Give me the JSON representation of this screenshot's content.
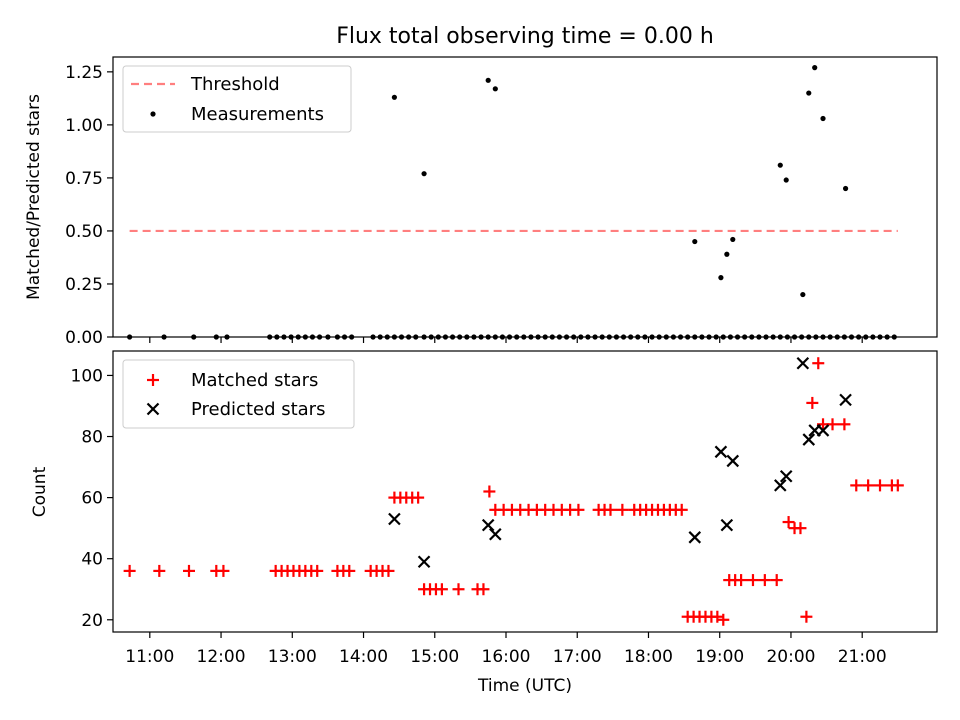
{
  "chart_data": [
    {
      "type": "scatter",
      "title": "Flux total observing time = 0.00 h",
      "xlabel": "",
      "ylabel": "Matched/Predicted stars",
      "xlim": [
        "10:29",
        "22:03"
      ],
      "ylim": [
        0,
        1.32
      ],
      "y_ticks": [
        0.0,
        0.25,
        0.5,
        0.75,
        1.0,
        1.25
      ],
      "y_tick_labels": [
        "0.00",
        "0.25",
        "0.50",
        "0.75",
        "1.00",
        "1.25"
      ],
      "x_tick_labels": [],
      "legend": {
        "placement": "top-left"
      },
      "threshold": {
        "name": "Threshold",
        "value": 0.5,
        "x_range": [
          "10:43",
          "21:30"
        ],
        "color": "#ff7f7f"
      },
      "series": [
        {
          "name": "Measurements",
          "color": "#000000",
          "marker": "dot",
          "x": [
            "10:43",
            "11:12",
            "11:37",
            "11:56",
            "12:05",
            "12:41",
            "12:47",
            "12:53",
            "12:59",
            "13:05",
            "13:11",
            "13:17",
            "13:23",
            "13:30",
            "13:38",
            "13:44",
            "13:50",
            "14:08",
            "14:14",
            "14:20",
            "14:26",
            "14:32",
            "14:38",
            "14:44",
            "14:51",
            "14:57",
            "15:03",
            "15:09",
            "15:15",
            "15:21",
            "15:27",
            "15:33",
            "15:39",
            "15:45",
            "15:51",
            "15:57",
            "16:03",
            "16:09",
            "16:15",
            "16:21",
            "16:27",
            "16:33",
            "16:39",
            "16:45",
            "16:51",
            "16:57",
            "17:03",
            "17:09",
            "17:15",
            "17:21",
            "17:27",
            "17:33",
            "17:39",
            "17:45",
            "17:51",
            "17:57",
            "18:03",
            "18:09",
            "18:15",
            "18:21",
            "18:27",
            "18:33",
            "18:39",
            "18:45",
            "18:51",
            "18:57",
            "19:03",
            "19:09",
            "19:15",
            "19:21",
            "19:27",
            "19:33",
            "19:39",
            "19:45",
            "19:51",
            "19:57",
            "20:03",
            "20:09",
            "20:15",
            "20:21",
            "20:27",
            "20:33",
            "20:39",
            "20:45",
            "20:51",
            "20:57",
            "21:03",
            "21:09",
            "21:15",
            "21:21",
            "21:27",
            "14:26",
            "14:51",
            "15:45",
            "15:51",
            "18:39",
            "19:01",
            "19:06",
            "19:11",
            "19:51",
            "19:56",
            "20:10",
            "20:15",
            "20:20",
            "20:27",
            "20:46"
          ],
          "y": [
            0,
            0,
            0,
            0,
            0,
            0,
            0,
            0,
            0,
            0,
            0,
            0,
            0,
            0,
            0,
            0,
            0,
            0,
            0,
            0,
            0,
            0,
            0,
            0,
            0,
            0,
            0,
            0,
            0,
            0,
            0,
            0,
            0,
            0,
            0,
            0,
            0,
            0,
            0,
            0,
            0,
            0,
            0,
            0,
            0,
            0,
            0,
            0,
            0,
            0,
            0,
            0,
            0,
            0,
            0,
            0,
            0,
            0,
            0,
            0,
            0,
            0,
            0,
            0,
            0,
            0,
            0,
            0,
            0,
            0,
            0,
            0,
            0,
            0,
            0,
            0,
            0,
            0,
            0,
            0,
            0,
            0,
            0,
            0,
            0,
            0,
            0,
            0,
            0,
            0,
            0,
            1.13,
            0.77,
            1.21,
            1.17,
            0.45,
            0.28,
            0.39,
            0.46,
            0.81,
            0.74,
            0.2,
            1.15,
            1.27,
            1.03,
            0.7
          ]
        }
      ]
    },
    {
      "type": "scatter",
      "title": "",
      "xlabel": "Time (UTC)",
      "ylabel": "Count",
      "xlim": [
        "10:29",
        "22:03"
      ],
      "ylim": [
        16,
        108
      ],
      "y_ticks": [
        20,
        40,
        60,
        80,
        100
      ],
      "y_tick_labels": [
        "20",
        "40",
        "60",
        "80",
        "100"
      ],
      "x_ticks": [
        "11:00",
        "12:00",
        "13:00",
        "14:00",
        "15:00",
        "16:00",
        "17:00",
        "18:00",
        "19:00",
        "20:00",
        "21:00"
      ],
      "x_tick_labels": [
        "11:00",
        "12:00",
        "13:00",
        "14:00",
        "15:00",
        "16:00",
        "17:00",
        "18:00",
        "19:00",
        "20:00",
        "21:00"
      ],
      "legend": {
        "placement": "top-left"
      },
      "series": [
        {
          "name": "Matched stars",
          "color": "#ff0000",
          "marker": "plus",
          "x": [
            "10:43",
            "11:08",
            "11:33",
            "11:56",
            "12:02",
            "12:46",
            "12:51",
            "12:56",
            "13:01",
            "13:06",
            "13:11",
            "13:16",
            "13:21",
            "13:38",
            "13:43",
            "13:48",
            "14:06",
            "14:11",
            "14:16",
            "14:21",
            "14:26",
            "14:31",
            "14:36",
            "14:41",
            "14:46",
            "14:51",
            "14:56",
            "15:01",
            "15:06",
            "15:20",
            "15:36",
            "15:41",
            "15:46",
            "15:51",
            "15:58",
            "16:05",
            "16:12",
            "16:19",
            "16:26",
            "16:33",
            "16:40",
            "16:47",
            "16:54",
            "17:01",
            "17:18",
            "17:23",
            "17:28",
            "17:38",
            "17:48",
            "17:53",
            "17:58",
            "18:03",
            "18:08",
            "18:13",
            "18:18",
            "18:23",
            "18:28",
            "18:33",
            "18:38",
            "18:43",
            "18:48",
            "18:53",
            "18:58",
            "19:03",
            "19:08",
            "19:13",
            "19:18",
            "19:28",
            "19:38",
            "19:48",
            "19:58",
            "20:03",
            "20:08",
            "20:13",
            "20:18",
            "20:23",
            "20:27",
            "20:35",
            "20:45",
            "20:55",
            "21:05",
            "21:15",
            "21:25",
            "21:30"
          ],
          "y": [
            36,
            36,
            36,
            36,
            36,
            36,
            36,
            36,
            36,
            36,
            36,
            36,
            36,
            36,
            36,
            36,
            36,
            36,
            36,
            36,
            60,
            60,
            60,
            60,
            60,
            30,
            30,
            30,
            30,
            30,
            30,
            30,
            62,
            56,
            56,
            56,
            56,
            56,
            56,
            56,
            56,
            56,
            56,
            56,
            56,
            56,
            56,
            56,
            56,
            56,
            56,
            56,
            56,
            56,
            56,
            56,
            56,
            21,
            21,
            21,
            21,
            21,
            21,
            20,
            33,
            33,
            33,
            33,
            33,
            33,
            52,
            50,
            50,
            21,
            91,
            104,
            84,
            84,
            84,
            64,
            64,
            64,
            64,
            64
          ]
        },
        {
          "name": "Predicted stars",
          "color": "#000000",
          "marker": "x",
          "x": [
            "14:26",
            "14:51",
            "15:45",
            "15:51",
            "18:39",
            "19:01",
            "19:06",
            "19:11",
            "19:51",
            "19:56",
            "20:10",
            "20:15",
            "20:20",
            "20:27",
            "20:46"
          ],
          "y": [
            53,
            39,
            51,
            48,
            47,
            75,
            51,
            72,
            64,
            67,
            104,
            79,
            82,
            82,
            92
          ]
        }
      ]
    }
  ]
}
